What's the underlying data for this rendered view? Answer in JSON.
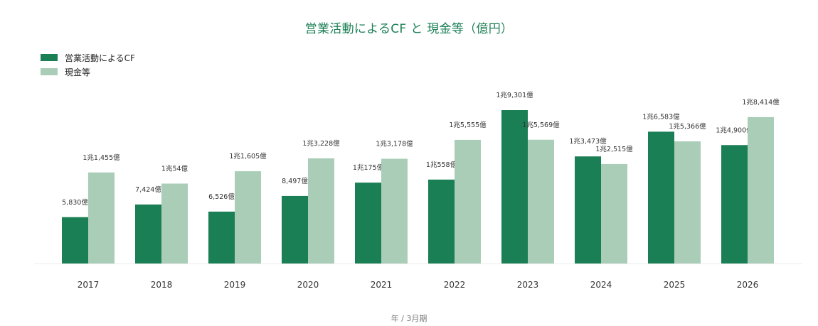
{
  "title": "営業活動によるCF と 現金等（億円）",
  "legend": {
    "series1": "営業活動によるCF",
    "series2": "現金等"
  },
  "colors": {
    "title": "#1b7f55",
    "series1": "#1b7f55",
    "series2": "#a9cdb7"
  },
  "chart_data": {
    "type": "bar",
    "title": "営業活動によるCF と 現金等（億円）",
    "xlabel": "年 / 3月期",
    "ylabel": "",
    "categories": [
      "2017",
      "2018",
      "2019",
      "2020",
      "2021",
      "2022",
      "2023",
      "2024",
      "2025",
      "2026"
    ],
    "series": [
      {
        "name": "営業活動によるCF",
        "values": [
          5830,
          7424,
          6526,
          8497,
          10175,
          10558,
          19301,
          13473,
          16583,
          14900
        ],
        "labels": [
          "5,830億",
          "7,424億",
          "6,526億",
          "8,497億",
          "1兆175億",
          "1兆558億",
          "1兆9,301億",
          "1兆3,473億",
          "1兆6,583億",
          "1兆4,900億"
        ]
      },
      {
        "name": "現金等",
        "values": [
          11455,
          10054,
          11605,
          13228,
          13178,
          15555,
          15569,
          12515,
          15366,
          18414
        ],
        "labels": [
          "1兆1,455億",
          "1兆54億",
          "1兆1,605億",
          "1兆3,228億",
          "1兆3,178億",
          "1兆5,555億",
          "1兆5,569億",
          "1兆2,515億",
          "1兆5,366億",
          "1兆8,414億"
        ]
      }
    ],
    "ylim": [
      0,
      19301
    ],
    "grid": false,
    "legend_position": "top-left"
  }
}
